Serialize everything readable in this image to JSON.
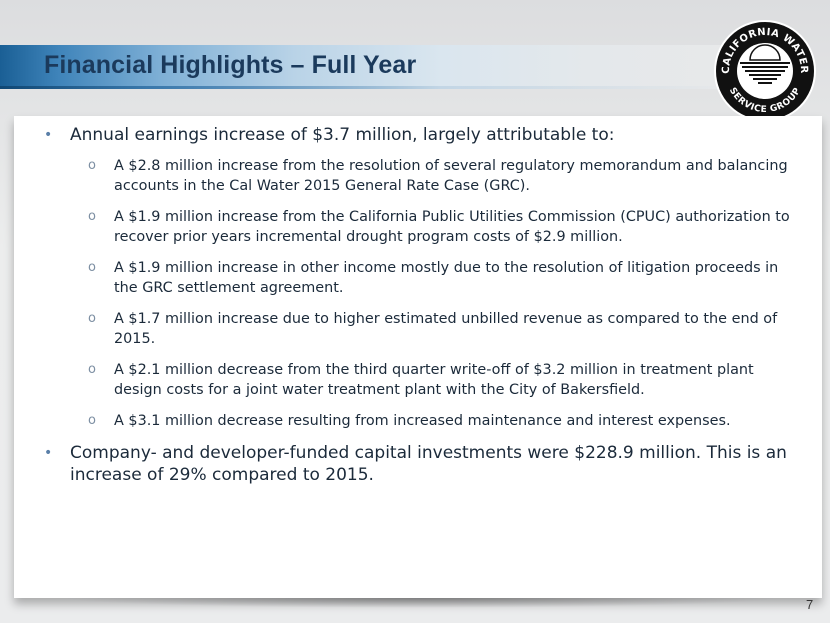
{
  "slide": {
    "title": "Financial Highlights – Full Year",
    "page_number": "7"
  },
  "logo": {
    "icon": "california-water-service-group-logo",
    "text": "CALIFORNIA WATER SERVICE GROUP"
  },
  "bullets": [
    {
      "text": "Annual earnings increase of $3.7 million, largely attributable to:"
    },
    {
      "text": "A $2.8 million increase from the resolution of several regulatory memorandum and balancing accounts in the Cal Water 2015 General Rate Case (GRC)."
    },
    {
      "text": "A $1.9 million increase from the California Public Utilities Commission (CPUC) authorization to recover prior years incremental drought program costs of $2.9 million."
    },
    {
      "text": "A $1.9 million increase in other income mostly due to the resolution of litigation proceeds in the GRC settlement agreement."
    },
    {
      "text": "A $1.7 million increase due to higher estimated unbilled revenue as compared to the end of 2015."
    },
    {
      "text": "A $2.1 million decrease from the third quarter write-off of $3.2 million in treatment plant design costs for a joint water treatment plant with the City of Bakersfield."
    },
    {
      "text": "A $3.1 million decrease resulting from increased maintenance and interest expenses."
    },
    {
      "text": "Company- and developer-funded capital investments were $228.9 million. This is an increase of 29% compared to 2015."
    }
  ],
  "markers": {
    "level1": "•",
    "level2": "o"
  },
  "colors": {
    "title_text": "#1b3a5c",
    "band_dark": "#1a5f95",
    "band_light": "#dae6ef",
    "body_text": "#1b2a3a"
  }
}
